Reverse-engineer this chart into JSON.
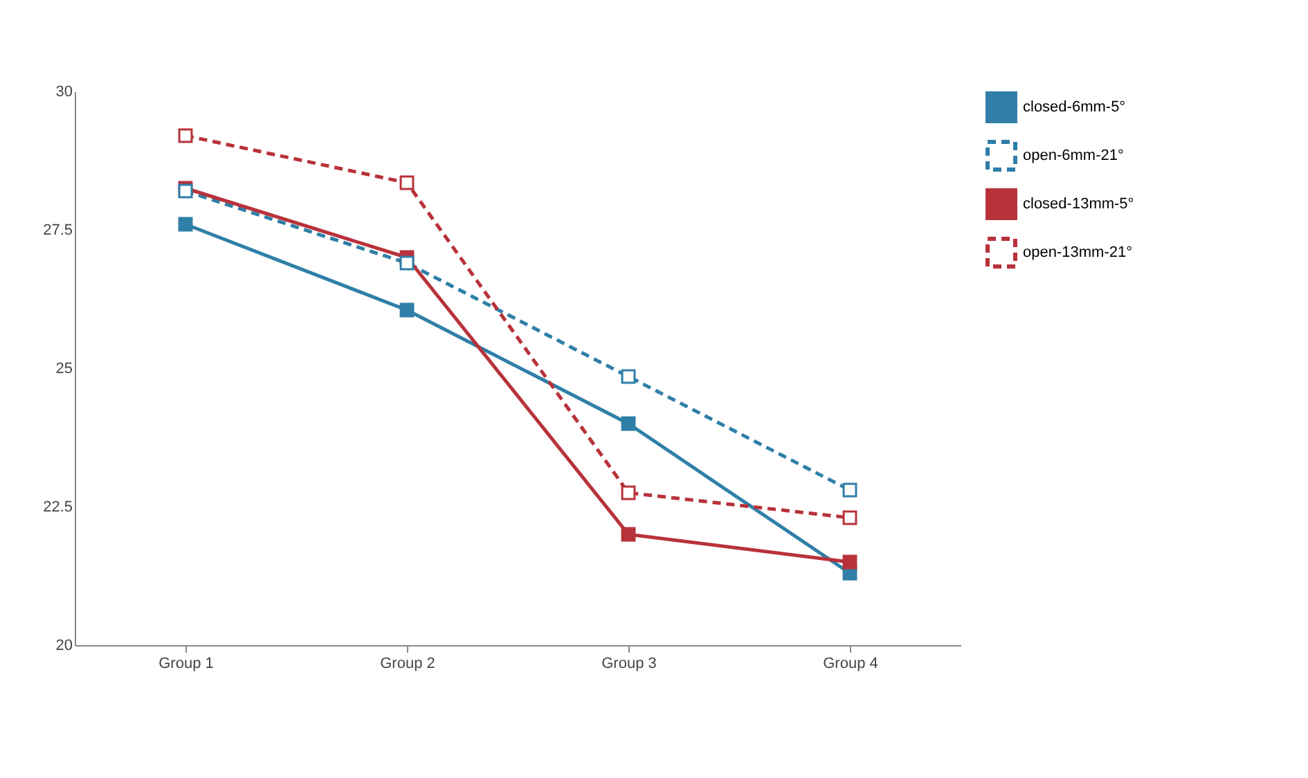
{
  "chart_data": {
    "type": "line",
    "categories": [
      "Group 1",
      "Group 2",
      "Group 3",
      "Group 4"
    ],
    "series": [
      {
        "name": "closed-6mm-5°",
        "color": "#2f7fa8",
        "line_style": "solid",
        "marker": "square",
        "values": [
          27.6,
          26.05,
          24.0,
          21.3
        ]
      },
      {
        "name": "open-6mm-21°",
        "color": "#2f7fa8",
        "line_style": "dashed",
        "marker": "square",
        "values": [
          28.2,
          26.9,
          24.85,
          22.8
        ]
      },
      {
        "name": "closed-13mm-5°",
        "color": "#b8323a",
        "line_style": "solid",
        "marker": "square",
        "values": [
          28.25,
          27.0,
          22.0,
          21.5
        ]
      },
      {
        "name": "open-13mm-21°",
        "color": "#b8323a",
        "line_style": "dashed",
        "marker": "square",
        "values": [
          29.2,
          28.35,
          22.75,
          22.3
        ]
      }
    ],
    "ylim": [
      20,
      30
    ],
    "yticks": [
      {
        "value": 20,
        "label": "20"
      },
      {
        "value": 22.5,
        "label": "22.5"
      },
      {
        "value": 25,
        "label": "25"
      },
      {
        "value": 27.5,
        "label": "27.5"
      },
      {
        "value": 30,
        "label": "30"
      }
    ],
    "grid": false,
    "legend": "right"
  }
}
